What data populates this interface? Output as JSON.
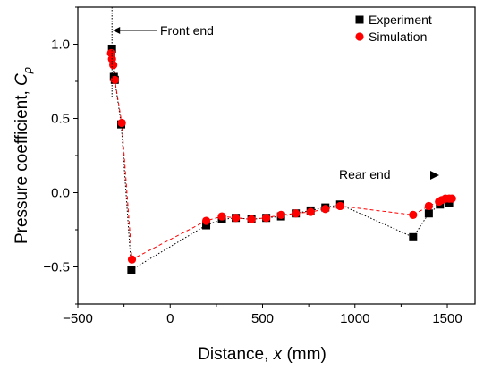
{
  "chart_data": {
    "type": "scatter",
    "title": "",
    "xlabel": {
      "prefix": "Distance, ",
      "var": "x",
      "suffix": " (mm)"
    },
    "ylabel": {
      "prefix": "Pressure coefficient, ",
      "var": "C",
      "sub": "p"
    },
    "xlim": [
      -500,
      1650
    ],
    "ylim": [
      -0.75,
      1.25
    ],
    "xticks": [
      -500,
      0,
      500,
      1000,
      1500
    ],
    "xtick_labels": [
      "−500",
      "0",
      "500",
      "1000",
      "1500"
    ],
    "yticks": [
      -0.5,
      0.0,
      0.5,
      1.0
    ],
    "ytick_labels": [
      "−0.5",
      "0.0",
      "0.5",
      "1.0"
    ],
    "grid": false,
    "legend": "top-right",
    "series": [
      {
        "name": "Experiment",
        "marker": "square",
        "line": "dotted",
        "color": "#000000",
        "x": [
          -315,
          -305,
          -300,
          -265,
          -210,
          195,
          280,
          355,
          440,
          520,
          600,
          680,
          760,
          840,
          920,
          1315,
          1400,
          1460,
          1510
        ],
        "y": [
          0.97,
          0.78,
          0.76,
          0.46,
          -0.52,
          -0.22,
          -0.18,
          -0.17,
          -0.18,
          -0.17,
          -0.16,
          -0.14,
          -0.12,
          -0.1,
          -0.08,
          -0.3,
          -0.14,
          -0.08,
          -0.07
        ]
      },
      {
        "name": "Simulation",
        "marker": "circle",
        "line": "dashed",
        "color": "#ff0000",
        "x": [
          -320,
          -315,
          -308,
          -300,
          -262,
          -207,
          195,
          280,
          355,
          440,
          520,
          600,
          680,
          760,
          840,
          920,
          1315,
          1400,
          1455,
          1470,
          1490,
          1510,
          1525
        ],
        "y": [
          0.94,
          0.9,
          0.86,
          0.76,
          0.47,
          -0.45,
          -0.19,
          -0.16,
          -0.17,
          -0.18,
          -0.17,
          -0.15,
          -0.14,
          -0.13,
          -0.11,
          -0.09,
          -0.15,
          -0.09,
          -0.06,
          -0.05,
          -0.04,
          -0.04,
          -0.04
        ]
      }
    ],
    "annotations": {
      "front": {
        "text": "Front end",
        "x": -315
      },
      "rear": {
        "text": "Rear end"
      }
    }
  }
}
